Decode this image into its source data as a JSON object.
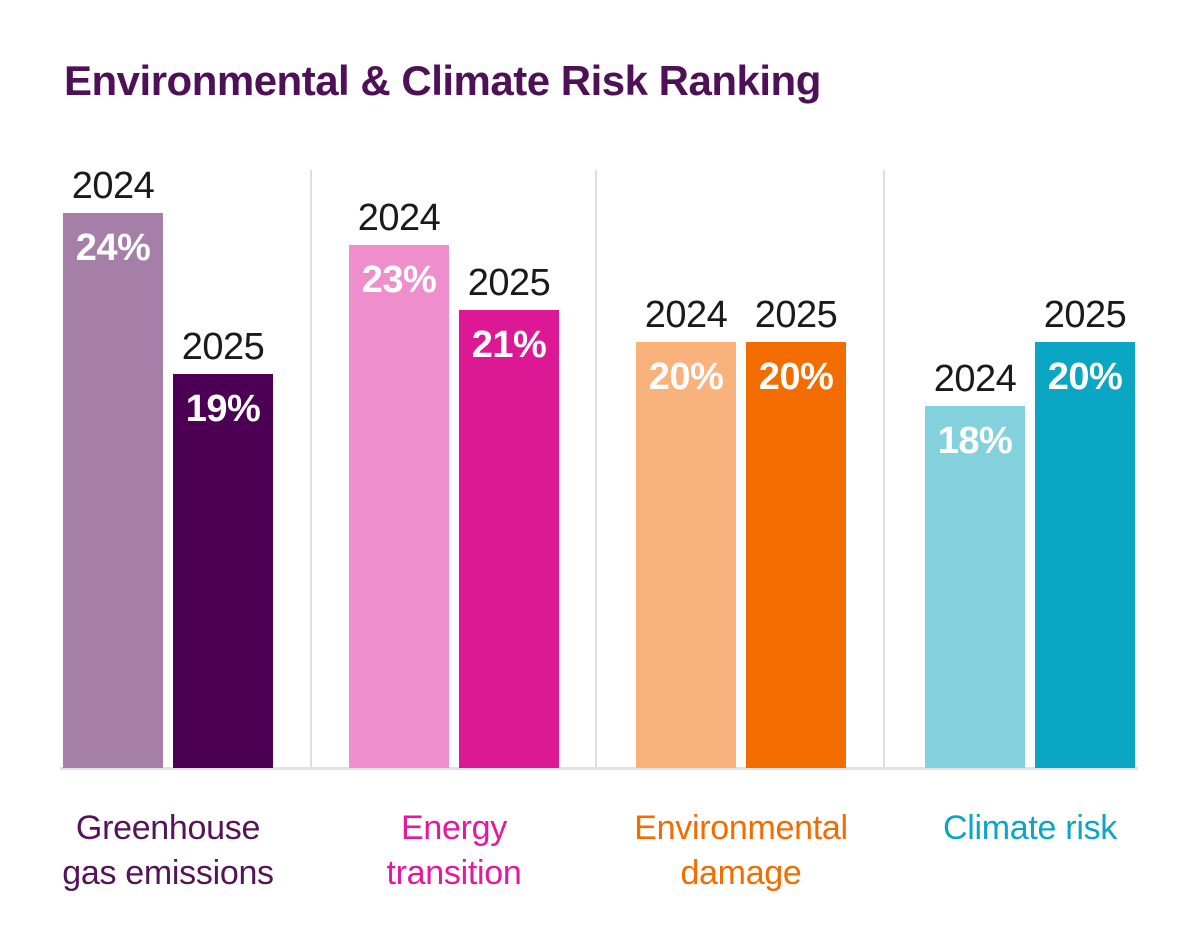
{
  "page": {
    "background": "#FFFFFF"
  },
  "title": {
    "text": "Environmental & Climate Risk Ranking",
    "color": "#4E1158"
  },
  "axis": {
    "baseline_color": "#E2E0E6",
    "divider_color": "#DFDDE1",
    "year_label_color": "#1A1A1A",
    "value_label_color": "#FFFFFF"
  },
  "chart_data": {
    "type": "bar",
    "title": "Environmental & Climate Risk Ranking",
    "unit": "%",
    "legend_position": "none",
    "grid": "off",
    "axis_note": "no visible value axis; truncated scale, bars labeled directly",
    "categories": [
      "Greenhouse gas emissions",
      "Energy transition",
      "Environmental damage",
      "Climate risk"
    ],
    "series": [
      {
        "name": "2024",
        "values": [
          24,
          23,
          20,
          18
        ]
      },
      {
        "name": "2025",
        "values": [
          19,
          21,
          20,
          20
        ]
      }
    ],
    "groups": [
      {
        "category": "Greenhouse gas emissions",
        "category_lines": [
          "Greenhouse",
          "gas emissions"
        ],
        "label_color": "#541457",
        "bars": [
          {
            "year": "2024",
            "value": 24,
            "label": "24%",
            "color": "#A57FA8"
          },
          {
            "year": "2025",
            "value": 19,
            "label": "19%",
            "color": "#4B0053"
          }
        ]
      },
      {
        "category": "Energy transition",
        "category_lines": [
          "Energy",
          "transition"
        ],
        "label_color": "#E5189C",
        "bars": [
          {
            "year": "2024",
            "value": 23,
            "label": "23%",
            "color": "#EE8ECC"
          },
          {
            "year": "2025",
            "value": 21,
            "label": "21%",
            "color": "#DC1895"
          }
        ]
      },
      {
        "category": "Environmental damage",
        "category_lines": [
          "Environmental",
          "damage"
        ],
        "label_color": "#F36C00",
        "bars": [
          {
            "year": "2024",
            "value": 20,
            "label": "20%",
            "color": "#F9B27C"
          },
          {
            "year": "2025",
            "value": 20,
            "label": "20%",
            "color": "#F36C00"
          }
        ]
      },
      {
        "category": "Climate risk",
        "category_lines": [
          "Climate risk"
        ],
        "label_color": "#0AA6C4",
        "bars": [
          {
            "year": "2024",
            "value": 18,
            "label": "18%",
            "color": "#84D1DE"
          },
          {
            "year": "2025",
            "value": 20,
            "label": "20%",
            "color": "#0AA6C4"
          }
        ]
      }
    ]
  }
}
